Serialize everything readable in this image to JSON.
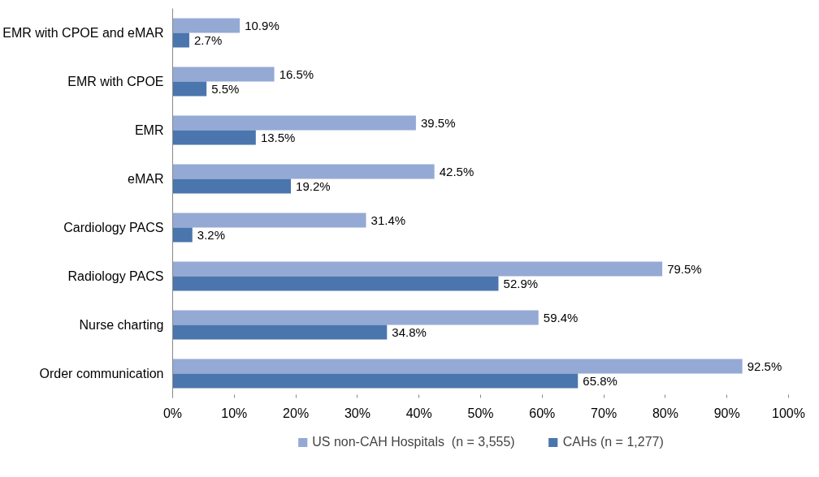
{
  "chart_data": {
    "type": "bar",
    "orientation": "horizontal",
    "categories": [
      "EMR with CPOE and eMAR",
      "EMR with CPOE",
      "EMR",
      "eMAR",
      "Cardiology PACS",
      "Radiology PACS",
      "Nurse charting",
      "Order communication"
    ],
    "series": [
      {
        "name": "US non-CAH Hospitals  (n = 3,555)",
        "color": "#95a9d5",
        "values": [
          10.9,
          16.5,
          39.5,
          42.5,
          31.4,
          79.5,
          59.4,
          92.5
        ],
        "value_labels": [
          "10.9%",
          "16.5%",
          "39.5%",
          "42.5%",
          "31.4%",
          "79.5%",
          "59.4%",
          "92.5%"
        ]
      },
      {
        "name": "CAHs (n = 1,277)",
        "color": "#4a76ad",
        "values": [
          2.7,
          5.5,
          13.5,
          19.2,
          3.2,
          52.9,
          34.8,
          65.8
        ],
        "value_labels": [
          "2.7%",
          "5.5%",
          "13.5%",
          "19.2%",
          "3.2%",
          "52.9%",
          "34.8%",
          "65.8%"
        ]
      }
    ],
    "xlim": [
      0,
      100
    ],
    "xticks": [
      {
        "value": 0,
        "label": "0%"
      },
      {
        "value": 10,
        "label": "10%"
      },
      {
        "value": 20,
        "label": "20%"
      },
      {
        "value": 30,
        "label": "30%"
      },
      {
        "value": 40,
        "label": "40%"
      },
      {
        "value": 50,
        "label": "50%"
      },
      {
        "value": 60,
        "label": "60%"
      },
      {
        "value": 70,
        "label": "70%"
      },
      {
        "value": 80,
        "label": "80%"
      },
      {
        "value": 90,
        "label": "90%"
      },
      {
        "value": 100,
        "label": "100%"
      }
    ],
    "grid": false,
    "legend": "bottom"
  }
}
